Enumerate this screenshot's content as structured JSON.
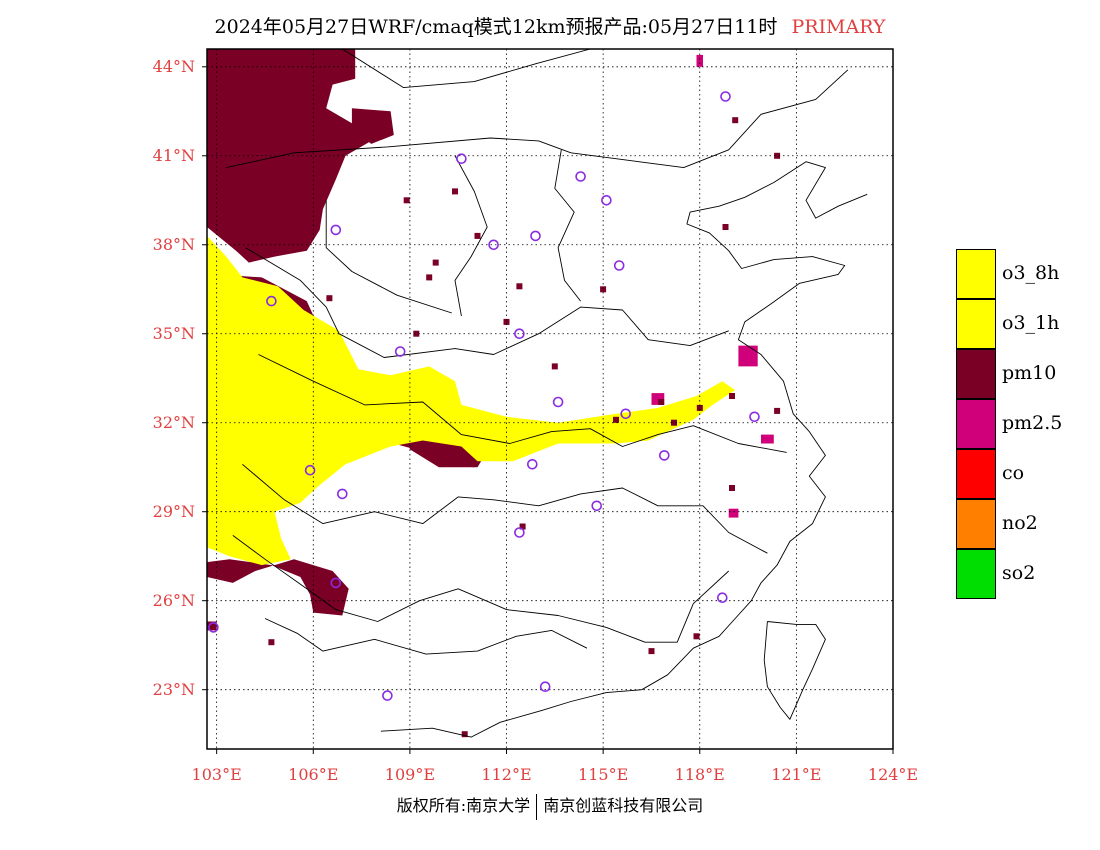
{
  "title": {
    "main": "2024年05月27日WRF/cmaq模式12km预报产品:05月27日11时",
    "tag": "PRIMARY"
  },
  "map": {
    "lon_range": [
      102.7,
      124.0
    ],
    "lat_range": [
      21.0,
      44.6
    ],
    "lat_ticks": [
      {
        "value": 23,
        "label": "23°N"
      },
      {
        "value": 26,
        "label": "26°N"
      },
      {
        "value": 29,
        "label": "29°N"
      },
      {
        "value": 32,
        "label": "32°N"
      },
      {
        "value": 35,
        "label": "35°N"
      },
      {
        "value": 38,
        "label": "38°N"
      },
      {
        "value": 41,
        "label": "41°N"
      },
      {
        "value": 44,
        "label": "44°N"
      }
    ],
    "lon_ticks": [
      {
        "value": 103,
        "label": "103°E"
      },
      {
        "value": 106,
        "label": "106°E"
      },
      {
        "value": 109,
        "label": "109°E"
      },
      {
        "value": 112,
        "label": "112°E"
      },
      {
        "value": 115,
        "label": "115°E"
      },
      {
        "value": 118,
        "label": "118°E"
      },
      {
        "value": 121,
        "label": "121°E"
      },
      {
        "value": 124,
        "label": "124°E"
      }
    ],
    "colors": {
      "o3": "#ffff00",
      "pm10": "#7a0026",
      "pm2_5": "#d0007a",
      "station": "#8a2be2",
      "coast": "#000000"
    },
    "pm10_regions": [
      [
        [
          102.7,
          44.6
        ],
        [
          107.3,
          44.6
        ],
        [
          107.3,
          43.6
        ],
        [
          106.6,
          43.4
        ],
        [
          106.4,
          42.6
        ],
        [
          107.2,
          42.1
        ],
        [
          107.8,
          41.5
        ],
        [
          107.0,
          41.0
        ],
        [
          106.7,
          40.2
        ],
        [
          106.3,
          39.2
        ],
        [
          106.2,
          38.5
        ],
        [
          105.8,
          37.8
        ],
        [
          104.8,
          37.6
        ],
        [
          104.0,
          37.4
        ],
        [
          103.6,
          37.8
        ],
        [
          102.7,
          38.6
        ]
      ],
      [
        [
          107.2,
          42.6
        ],
        [
          108.4,
          42.5
        ],
        [
          108.5,
          41.7
        ],
        [
          107.8,
          41.4
        ],
        [
          107.2,
          41.9
        ]
      ],
      [
        [
          103.0,
          37.0
        ],
        [
          104.4,
          36.9
        ],
        [
          105.8,
          36.1
        ],
        [
          106.3,
          34.9
        ],
        [
          105.5,
          34.0
        ],
        [
          105.8,
          33.4
        ],
        [
          107.3,
          33.2
        ],
        [
          108.4,
          32.3
        ],
        [
          110.6,
          32.0
        ],
        [
          111.3,
          31.6
        ],
        [
          111.4,
          31.0
        ],
        [
          111.0,
          30.5
        ],
        [
          110.0,
          30.6
        ],
        [
          109.5,
          31.0
        ],
        [
          108.5,
          31.3
        ],
        [
          107.0,
          31.1
        ],
        [
          106.4,
          30.4
        ],
        [
          105.9,
          29.7
        ],
        [
          105.1,
          29.5
        ],
        [
          104.3,
          30.0
        ],
        [
          103.8,
          30.9
        ],
        [
          103.4,
          31.4
        ],
        [
          103.0,
          32.0
        ],
        [
          103.4,
          33.0
        ],
        [
          103.1,
          33.9
        ],
        [
          103.5,
          34.7
        ],
        [
          102.9,
          35.6
        ]
      ],
      [
        [
          108.8,
          32.3
        ],
        [
          111.2,
          32.1
        ],
        [
          111.6,
          31.4
        ],
        [
          111.1,
          30.5
        ],
        [
          109.9,
          30.5
        ],
        [
          109.0,
          31.1
        ]
      ],
      [
        [
          102.7,
          27.3
        ],
        [
          103.4,
          27.4
        ],
        [
          104.7,
          27.2
        ],
        [
          105.6,
          26.8
        ],
        [
          105.9,
          26.2
        ],
        [
          106.0,
          25.6
        ],
        [
          106.9,
          25.5
        ],
        [
          107.1,
          26.4
        ],
        [
          106.6,
          27.0
        ],
        [
          105.4,
          27.4
        ],
        [
          104.2,
          27.0
        ],
        [
          103.5,
          26.6
        ],
        [
          102.7,
          26.8
        ]
      ],
      [
        [
          102.7,
          25.3
        ],
        [
          103.0,
          25.3
        ],
        [
          103.0,
          25.0
        ],
        [
          102.7,
          25.0
        ]
      ]
    ],
    "o3_regions": [
      [
        [
          102.7,
          38.3
        ],
        [
          103.3,
          37.6
        ],
        [
          103.8,
          36.9
        ],
        [
          104.9,
          36.6
        ],
        [
          105.7,
          35.8
        ],
        [
          106.8,
          35.1
        ],
        [
          107.4,
          33.8
        ],
        [
          108.4,
          33.6
        ],
        [
          109.6,
          33.9
        ],
        [
          110.4,
          33.4
        ],
        [
          110.6,
          32.6
        ],
        [
          112.0,
          32.2
        ],
        [
          113.6,
          32.0
        ],
        [
          115.4,
          32.3
        ],
        [
          116.7,
          32.5
        ],
        [
          117.9,
          32.9
        ],
        [
          118.7,
          33.4
        ],
        [
          119.1,
          33.1
        ],
        [
          118.4,
          32.6
        ],
        [
          117.8,
          32.1
        ],
        [
          116.4,
          31.4
        ],
        [
          115.4,
          31.3
        ],
        [
          113.6,
          31.3
        ],
        [
          112.2,
          30.7
        ],
        [
          111.1,
          30.7
        ],
        [
          110.6,
          31.2
        ],
        [
          109.4,
          31.4
        ],
        [
          108.4,
          31.2
        ],
        [
          107.0,
          30.6
        ],
        [
          106.2,
          29.9
        ],
        [
          105.6,
          29.3
        ],
        [
          104.8,
          29.0
        ],
        [
          105.0,
          28.1
        ],
        [
          105.3,
          27.4
        ],
        [
          104.4,
          27.2
        ],
        [
          103.4,
          27.5
        ],
        [
          102.7,
          27.8
        ]
      ]
    ],
    "pm25_regions": [
      [
        [
          119.2,
          34.6
        ],
        [
          119.8,
          34.6
        ],
        [
          119.8,
          33.9
        ],
        [
          119.2,
          33.9
        ]
      ],
      [
        [
          116.5,
          33.0
        ],
        [
          116.9,
          33.0
        ],
        [
          116.9,
          32.6
        ],
        [
          116.5,
          32.6
        ]
      ],
      [
        [
          119.9,
          31.6
        ],
        [
          120.3,
          31.6
        ],
        [
          120.3,
          31.3
        ],
        [
          119.9,
          31.3
        ]
      ],
      [
        [
          117.9,
          44.4
        ],
        [
          118.1,
          44.4
        ],
        [
          118.1,
          44.0
        ],
        [
          117.9,
          44.0
        ]
      ],
      [
        [
          118.9,
          29.1
        ],
        [
          119.2,
          29.1
        ],
        [
          119.2,
          28.8
        ],
        [
          118.9,
          28.8
        ]
      ]
    ],
    "pm10_specks": [
      [
        110.4,
        39.8
      ],
      [
        108.9,
        39.5
      ],
      [
        111.1,
        38.3
      ],
      [
        109.6,
        36.9
      ],
      [
        112.4,
        36.6
      ],
      [
        109.8,
        37.4
      ],
      [
        109.2,
        35.0
      ],
      [
        112.0,
        35.4
      ],
      [
        113.5,
        33.9
      ],
      [
        116.8,
        32.7
      ],
      [
        117.2,
        32.0
      ],
      [
        118.0,
        32.5
      ],
      [
        119.0,
        32.9
      ],
      [
        120.4,
        32.4
      ],
      [
        112.5,
        28.5
      ],
      [
        115.4,
        32.1
      ],
      [
        119.0,
        29.8
      ],
      [
        117.9,
        24.8
      ],
      [
        110.7,
        21.5
      ],
      [
        119.1,
        42.2
      ],
      [
        120.4,
        41.0
      ],
      [
        115.0,
        36.5
      ],
      [
        118.8,
        38.6
      ],
      [
        106.5,
        36.2
      ],
      [
        104.7,
        24.6
      ],
      [
        116.5,
        24.3
      ]
    ],
    "stations": [
      [
        118.8,
        43.0
      ],
      [
        110.6,
        40.9
      ],
      [
        114.3,
        40.3
      ],
      [
        115.1,
        39.5
      ],
      [
        106.7,
        38.5
      ],
      [
        111.6,
        38.0
      ],
      [
        112.9,
        38.3
      ],
      [
        115.5,
        37.3
      ],
      [
        104.7,
        36.1
      ],
      [
        112.4,
        35.0
      ],
      [
        108.7,
        34.4
      ],
      [
        113.6,
        32.7
      ],
      [
        115.7,
        32.3
      ],
      [
        119.7,
        32.2
      ],
      [
        116.9,
        30.9
      ],
      [
        112.8,
        30.6
      ],
      [
        105.9,
        30.4
      ],
      [
        106.9,
        29.6
      ],
      [
        114.8,
        29.2
      ],
      [
        112.4,
        28.3
      ],
      [
        106.7,
        26.6
      ],
      [
        118.7,
        26.1
      ],
      [
        102.9,
        25.1
      ],
      [
        108.3,
        22.8
      ],
      [
        113.2,
        23.1
      ]
    ],
    "boundaries": [
      [
        [
          106.9,
          44.6
        ],
        [
          108.8,
          43.3
        ],
        [
          111.0,
          43.5
        ],
        [
          112.9,
          44.1
        ],
        [
          114.6,
          44.6
        ]
      ],
      [
        [
          103.3,
          40.6
        ],
        [
          105.4,
          41.1
        ],
        [
          108.3,
          41.3
        ],
        [
          111.5,
          41.6
        ],
        [
          113.0,
          41.5
        ],
        [
          114.0,
          41.1
        ],
        [
          116.1,
          40.8
        ],
        [
          117.5,
          40.6
        ],
        [
          118.9,
          41.2
        ],
        [
          119.9,
          42.4
        ],
        [
          121.6,
          42.9
        ],
        [
          122.6,
          43.9
        ]
      ],
      [
        [
          110.4,
          41.0
        ],
        [
          111.0,
          39.8
        ],
        [
          111.4,
          38.6
        ],
        [
          110.9,
          37.6
        ],
        [
          110.4,
          36.8
        ],
        [
          110.6,
          35.6
        ]
      ],
      [
        [
          113.7,
          41.2
        ],
        [
          113.5,
          39.9
        ],
        [
          114.1,
          39.1
        ],
        [
          113.6,
          37.9
        ],
        [
          113.8,
          36.8
        ],
        [
          114.3,
          36.1
        ]
      ],
      [
        [
          106.4,
          39.5
        ],
        [
          106.4,
          37.9
        ],
        [
          107.2,
          37.1
        ],
        [
          108.6,
          36.3
        ],
        [
          110.3,
          35.7
        ]
      ],
      [
        [
          103.9,
          37.9
        ],
        [
          105.6,
          36.8
        ],
        [
          106.4,
          35.9
        ],
        [
          106.8,
          35.0
        ],
        [
          108.2,
          34.2
        ],
        [
          110.4,
          34.5
        ],
        [
          111.6,
          34.3
        ],
        [
          113.0,
          35.0
        ],
        [
          114.3,
          35.9
        ],
        [
          115.6,
          35.8
        ],
        [
          116.4,
          34.8
        ],
        [
          117.7,
          34.6
        ],
        [
          118.9,
          35.1
        ]
      ],
      [
        [
          104.3,
          34.3
        ],
        [
          106.0,
          33.4
        ],
        [
          107.6,
          32.6
        ],
        [
          109.4,
          32.7
        ],
        [
          110.6,
          31.6
        ],
        [
          112.1,
          31.3
        ],
        [
          113.4,
          31.7
        ],
        [
          114.6,
          31.8
        ],
        [
          115.6,
          31.2
        ],
        [
          116.7,
          31.6
        ],
        [
          117.8,
          31.9
        ],
        [
          119.2,
          31.3
        ],
        [
          120.7,
          31.0
        ]
      ],
      [
        [
          103.8,
          30.6
        ],
        [
          105.1,
          29.4
        ],
        [
          106.3,
          28.6
        ],
        [
          107.9,
          29.0
        ],
        [
          109.4,
          28.6
        ],
        [
          110.5,
          29.5
        ],
        [
          111.6,
          29.4
        ],
        [
          113.0,
          29.2
        ],
        [
          114.3,
          29.6
        ],
        [
          115.6,
          29.8
        ],
        [
          116.7,
          29.2
        ],
        [
          118.1,
          29.2
        ],
        [
          118.9,
          28.3
        ],
        [
          120.1,
          27.6
        ]
      ],
      [
        [
          103.5,
          28.2
        ],
        [
          104.5,
          27.4
        ],
        [
          105.8,
          26.4
        ],
        [
          106.7,
          25.7
        ],
        [
          108.0,
          25.3
        ],
        [
          109.3,
          26.0
        ],
        [
          110.5,
          26.4
        ],
        [
          112.0,
          25.7
        ],
        [
          113.6,
          25.5
        ],
        [
          115.1,
          25.1
        ],
        [
          116.3,
          24.6
        ],
        [
          117.3,
          24.6
        ],
        [
          117.8,
          25.9
        ],
        [
          118.9,
          27.0
        ]
      ],
      [
        [
          104.5,
          25.4
        ],
        [
          105.5,
          24.9
        ],
        [
          106.3,
          24.3
        ],
        [
          107.9,
          24.7
        ],
        [
          109.5,
          24.2
        ],
        [
          111.1,
          24.3
        ],
        [
          112.3,
          24.8
        ],
        [
          113.4,
          25.0
        ],
        [
          114.5,
          24.4
        ]
      ],
      [
        [
          108.1,
          21.6
        ],
        [
          109.7,
          21.7
        ],
        [
          110.9,
          21.4
        ],
        [
          111.8,
          21.9
        ],
        [
          113.1,
          22.3
        ],
        [
          114.0,
          22.6
        ],
        [
          115.1,
          22.9
        ],
        [
          116.2,
          23.0
        ],
        [
          117.0,
          23.5
        ],
        [
          117.8,
          24.4
        ],
        [
          118.6,
          24.8
        ],
        [
          119.1,
          25.4
        ],
        [
          119.6,
          26.0
        ],
        [
          119.9,
          26.6
        ],
        [
          120.4,
          27.2
        ],
        [
          120.8,
          28.0
        ],
        [
          121.5,
          28.6
        ],
        [
          121.9,
          29.5
        ],
        [
          121.4,
          30.2
        ],
        [
          121.9,
          30.9
        ],
        [
          121.4,
          31.7
        ],
        [
          120.9,
          32.3
        ],
        [
          120.6,
          33.4
        ],
        [
          119.9,
          34.3
        ],
        [
          119.2,
          34.8
        ],
        [
          119.4,
          35.4
        ],
        [
          120.2,
          36.0
        ],
        [
          121.1,
          36.7
        ],
        [
          122.3,
          37.0
        ],
        [
          122.5,
          37.3
        ],
        [
          121.5,
          37.6
        ],
        [
          120.3,
          37.5
        ],
        [
          119.3,
          37.2
        ],
        [
          118.9,
          37.8
        ],
        [
          118.3,
          38.4
        ],
        [
          117.6,
          38.7
        ],
        [
          117.7,
          39.1
        ],
        [
          118.6,
          39.3
        ],
        [
          119.4,
          39.6
        ],
        [
          120.3,
          40.1
        ],
        [
          121.3,
          40.8
        ],
        [
          121.9,
          40.6
        ],
        [
          121.3,
          39.5
        ],
        [
          121.6,
          38.9
        ],
        [
          122.3,
          39.3
        ],
        [
          123.2,
          39.7
        ]
      ],
      [
        [
          120.1,
          25.3
        ],
        [
          121.0,
          25.2
        ],
        [
          121.6,
          25.2
        ],
        [
          121.9,
          24.7
        ],
        [
          121.5,
          23.7
        ],
        [
          121.2,
          23.0
        ],
        [
          120.8,
          22.0
        ],
        [
          120.5,
          22.4
        ],
        [
          120.1,
          23.1
        ],
        [
          120.0,
          24.0
        ],
        [
          120.1,
          25.3
        ]
      ]
    ],
    "graticule_lats": [
      23,
      26,
      29,
      32,
      35,
      38,
      41,
      44
    ],
    "graticule_lons": [
      103,
      106,
      109,
      112,
      115,
      118,
      121,
      124
    ]
  },
  "legend": [
    {
      "label": "o3_8h",
      "color": "#ffff00"
    },
    {
      "label": "o3_1h",
      "color": "#ffff00"
    },
    {
      "label": "pm10",
      "color": "#7a0026"
    },
    {
      "label": "pm2.5",
      "color": "#d0007a"
    },
    {
      "label": "co",
      "color": "#ff0000"
    },
    {
      "label": "no2",
      "color": "#ff8000"
    },
    {
      "label": "so2",
      "color": "#00dd00"
    }
  ],
  "footer": {
    "left": "版权所有:南京大学",
    "right": "南京创蓝科技有限公司"
  }
}
